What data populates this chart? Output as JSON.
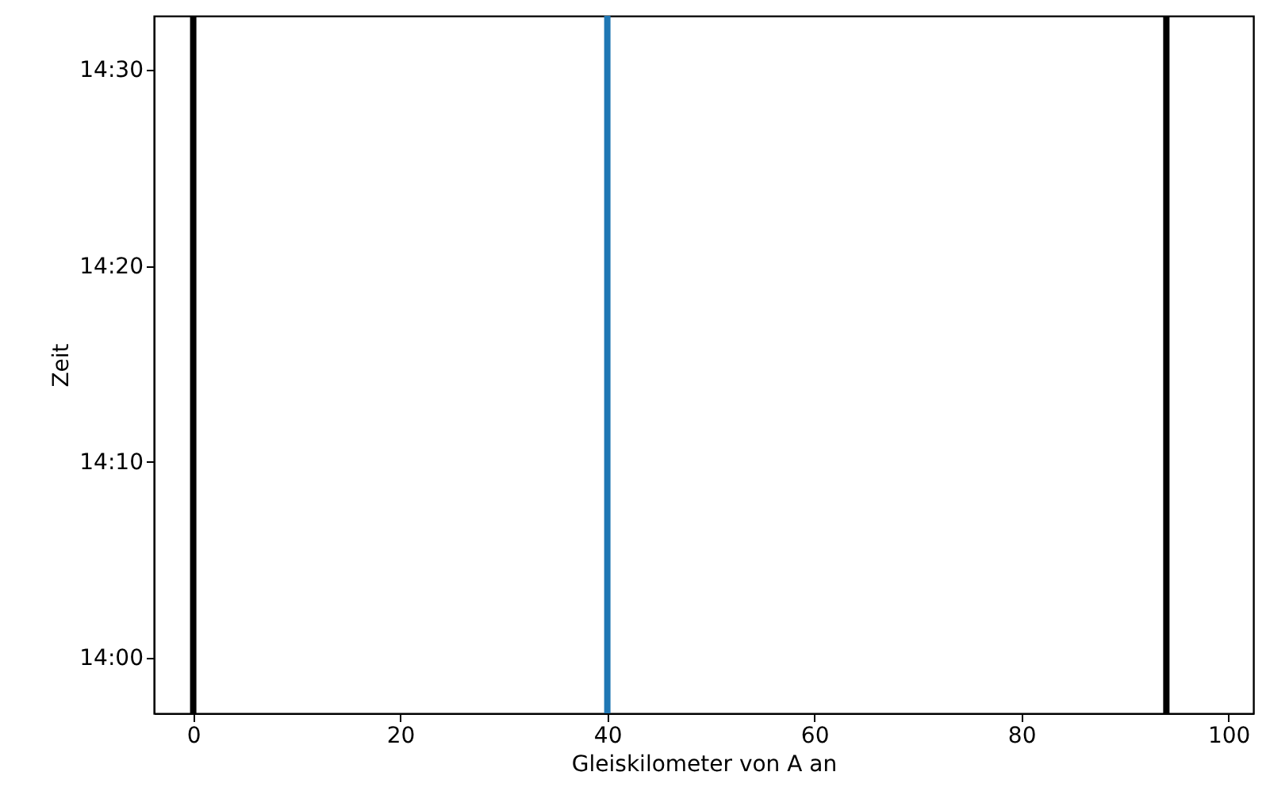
{
  "chart_data": {
    "type": "line",
    "xlabel": "Gleiskilometer von A an",
    "ylabel": "Zeit",
    "xlim": [
      -3.8,
      102.4
    ],
    "xticks": [
      0,
      20,
      40,
      60,
      80,
      100
    ],
    "ylim": [
      13.953,
      14.546
    ],
    "yticks": [
      {
        "value": 14,
        "label": "14:00"
      },
      {
        "value": 14.166667,
        "label": "14:10"
      },
      {
        "value": 14.333333,
        "label": "14:20"
      },
      {
        "value": 14.5,
        "label": "14:30"
      }
    ],
    "grid": false,
    "ref_lines": [
      {
        "axis": "x",
        "value": 0,
        "color": "#000000"
      },
      {
        "axis": "x",
        "value": 40,
        "color": "#1f77b4"
      },
      {
        "axis": "x",
        "value": 94,
        "color": "#000000"
      }
    ]
  }
}
